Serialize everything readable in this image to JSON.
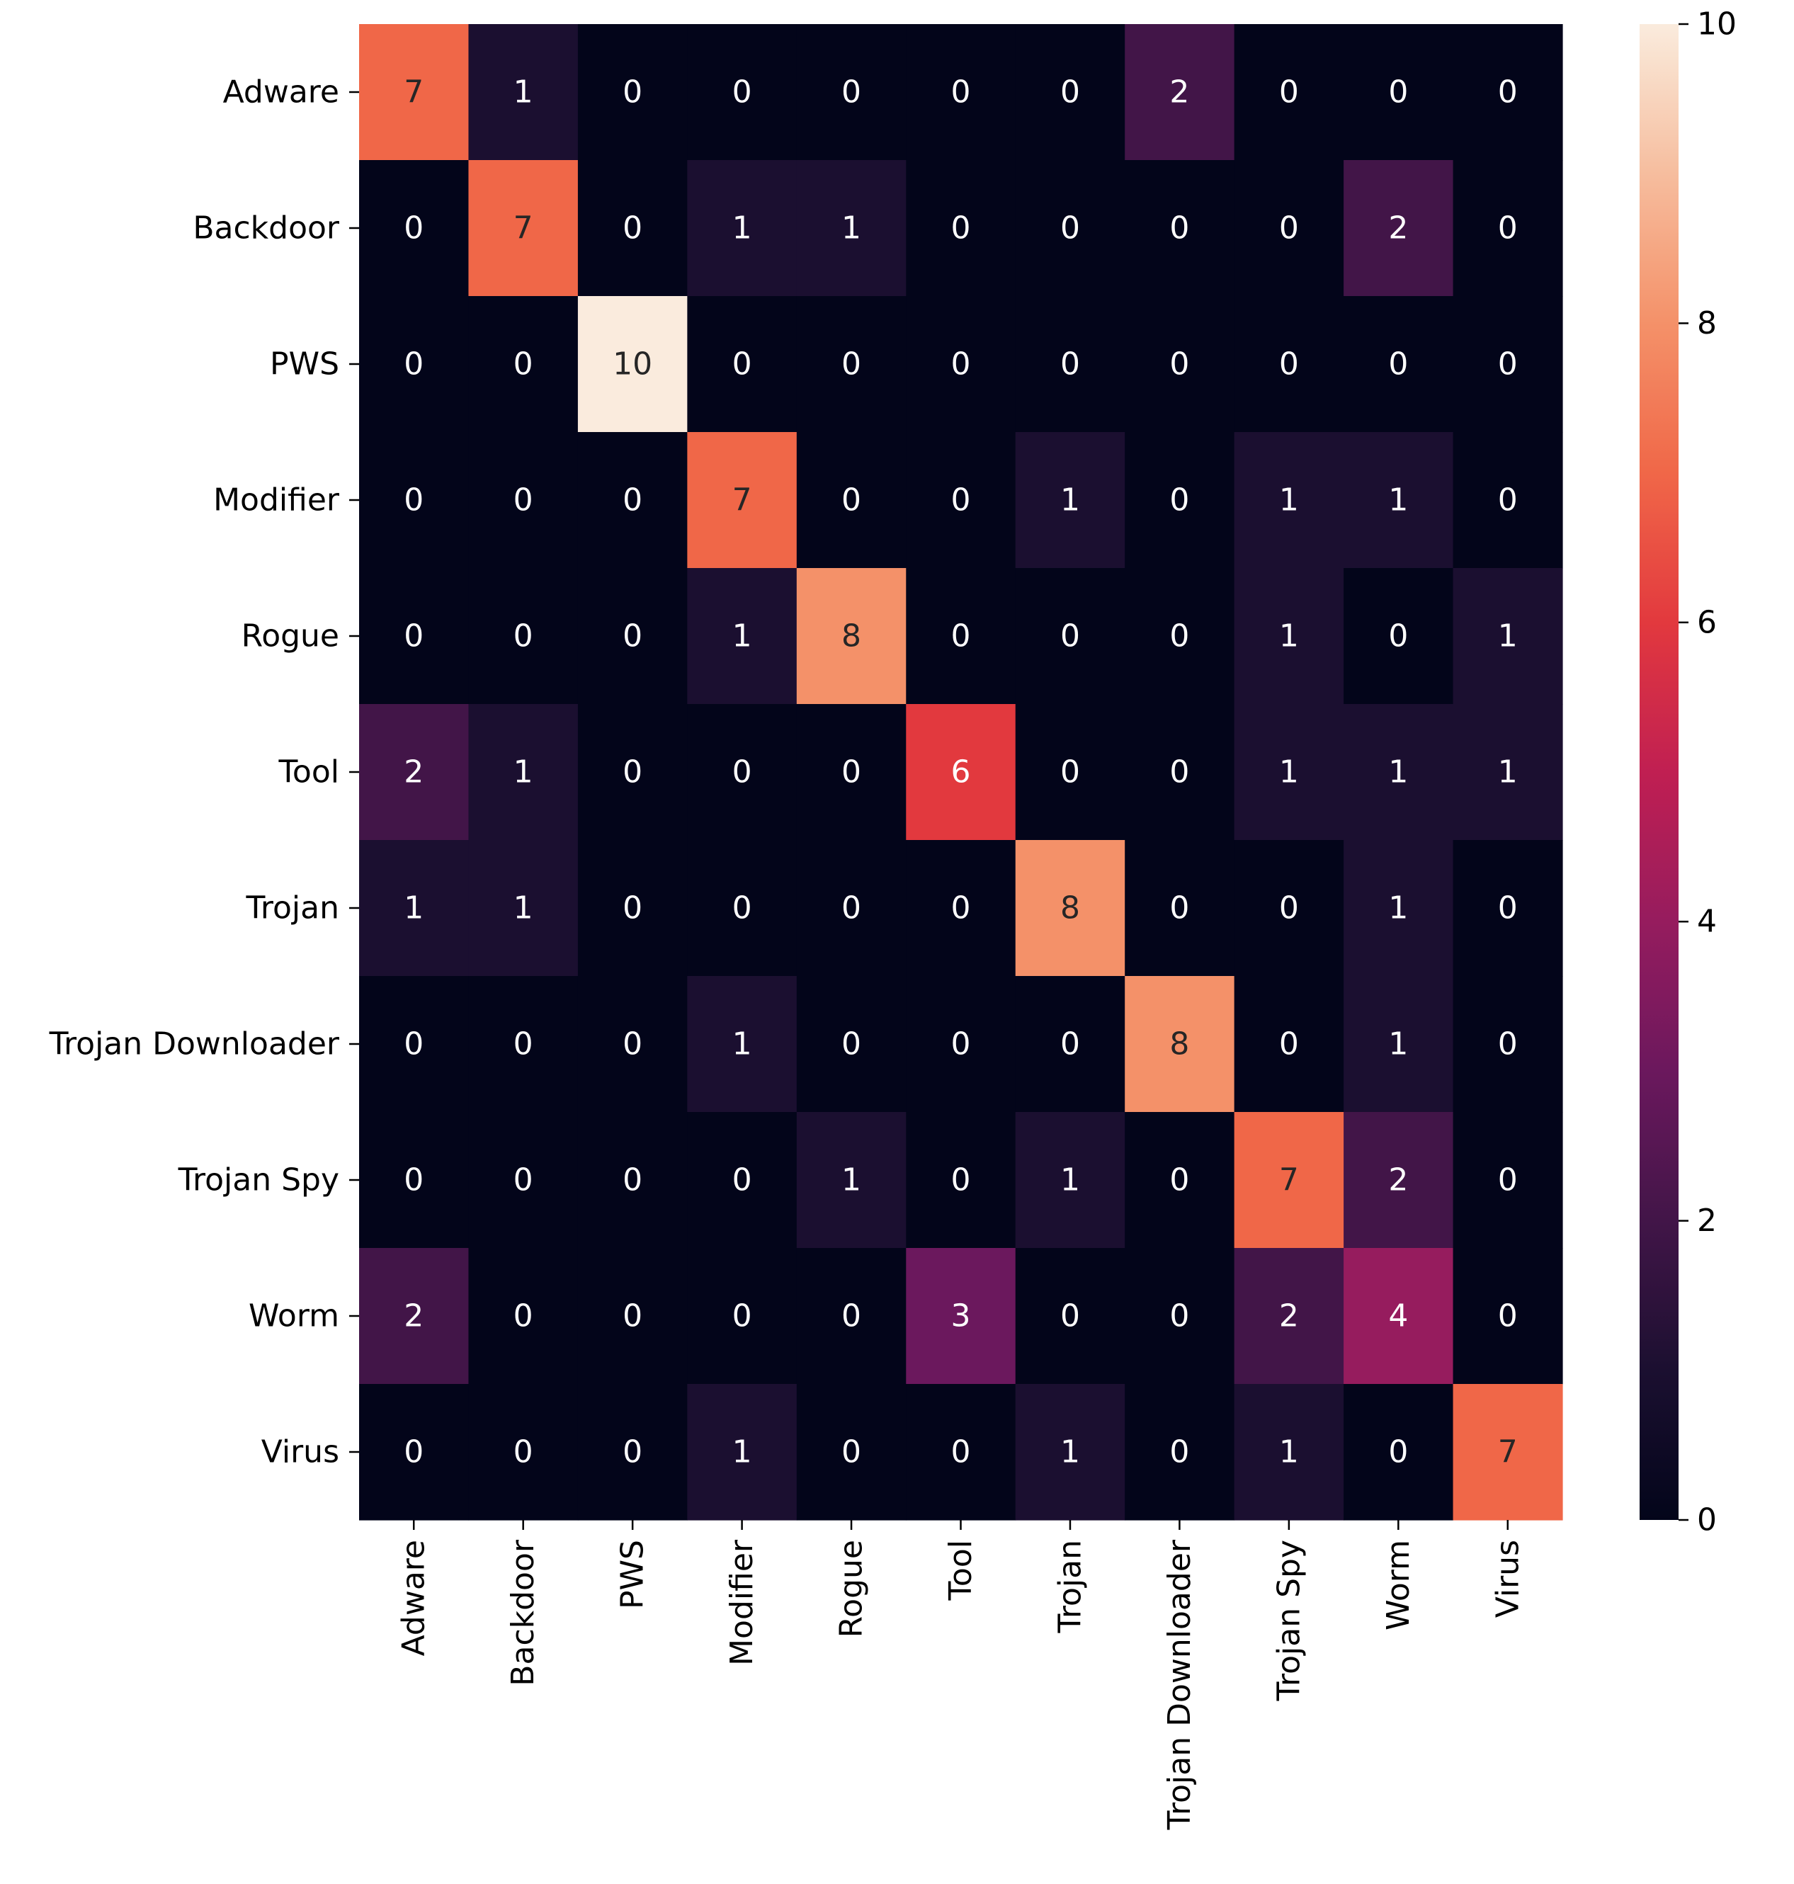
{
  "chart_data": {
    "type": "heatmap",
    "title": "",
    "xlabel": "",
    "ylabel": "",
    "row_labels": [
      "Adware",
      "Backdoor",
      "PWS",
      "Modifier",
      "Rogue",
      "Tool",
      "Trojan",
      "Trojan Downloader",
      "Trojan Spy",
      "Worm",
      "Virus"
    ],
    "col_labels": [
      "Adware",
      "Backdoor",
      "PWS",
      "Modifier",
      "Rogue",
      "Tool",
      "Trojan",
      "Trojan Downloader",
      "Trojan Spy",
      "Worm",
      "Virus"
    ],
    "matrix": [
      [
        7,
        1,
        0,
        0,
        0,
        0,
        0,
        2,
        0,
        0,
        0
      ],
      [
        0,
        7,
        0,
        1,
        1,
        0,
        0,
        0,
        0,
        2,
        0
      ],
      [
        0,
        0,
        10,
        0,
        0,
        0,
        0,
        0,
        0,
        0,
        0
      ],
      [
        0,
        0,
        0,
        7,
        0,
        0,
        1,
        0,
        1,
        1,
        0
      ],
      [
        0,
        0,
        0,
        1,
        8,
        0,
        0,
        0,
        1,
        0,
        1
      ],
      [
        2,
        1,
        0,
        0,
        0,
        6,
        0,
        0,
        1,
        1,
        1
      ],
      [
        1,
        1,
        0,
        0,
        0,
        0,
        8,
        0,
        0,
        1,
        0
      ],
      [
        0,
        0,
        0,
        1,
        0,
        0,
        0,
        8,
        0,
        1,
        0
      ],
      [
        0,
        0,
        0,
        0,
        1,
        0,
        1,
        0,
        7,
        2,
        0
      ],
      [
        2,
        0,
        0,
        0,
        0,
        3,
        0,
        0,
        2,
        4,
        0
      ],
      [
        0,
        0,
        0,
        1,
        0,
        0,
        1,
        0,
        1,
        0,
        7
      ]
    ],
    "colorbar": {
      "min": 0,
      "max": 10,
      "ticks": [
        0,
        2,
        4,
        6,
        8,
        10
      ],
      "colormap": "rocket"
    },
    "annotation_colors": {
      "dark_cell_text": "#ffffff",
      "light_cell_text": "#262626"
    }
  }
}
